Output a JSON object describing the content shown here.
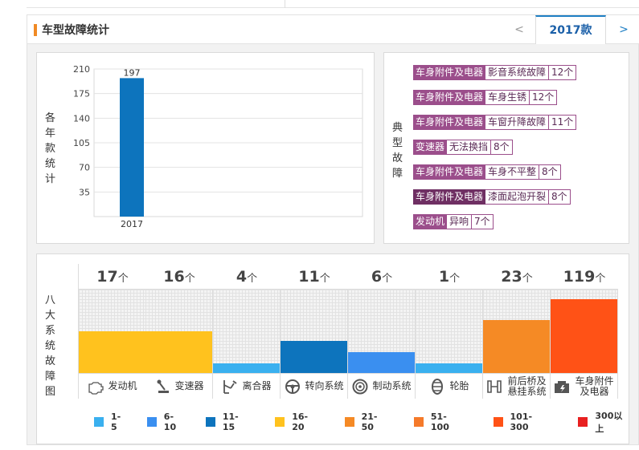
{
  "header": {
    "title": "车型故障统计",
    "prev": "<",
    "year_tab": "2017款",
    "next": ">"
  },
  "chart_data": {
    "type": "bar",
    "ylabel": "各年款统计",
    "categories": [
      "2017"
    ],
    "values": [
      197
    ],
    "ylim": [
      0,
      210
    ],
    "yticks": [
      35,
      70,
      105,
      140,
      175,
      210
    ],
    "grid": true,
    "bar_color": "#0d74bd"
  },
  "faults": {
    "label": "典型故障",
    "items": [
      {
        "category": "车身附件及电器",
        "name": "影音系统故障",
        "count": "12个"
      },
      {
        "category": "车身附件及电器",
        "name": "车身生锈",
        "count": "12个"
      },
      {
        "category": "车身附件及电器",
        "name": "车窗升降故障",
        "count": "11个"
      },
      {
        "category": "变速器",
        "name": "无法换挡",
        "count": "8个"
      },
      {
        "category": "车身附件及电器",
        "name": "车身不平整",
        "count": "8个"
      },
      {
        "category": "车身附件及电器",
        "name": "漆面起泡开裂",
        "count": "8个"
      },
      {
        "category": "发动机",
        "name": "异响",
        "count": "7个"
      }
    ]
  },
  "systems": {
    "label": "八大系统故障图",
    "unit": "个",
    "items": [
      {
        "name": "发动机",
        "count": "17",
        "icon": "engine-icon",
        "color": "#ffc21e",
        "fill": 0.5
      },
      {
        "name": "变速器",
        "count": "16",
        "icon": "gear-shift-icon",
        "color": "#ffc21e",
        "fill": 0.5
      },
      {
        "name": "离合器",
        "count": "4",
        "icon": "clutch-pedal-icon",
        "color": "#3ab0ef",
        "fill": 0.12
      },
      {
        "name": "转向系统",
        "count": "11",
        "icon": "steering-wheel-icon",
        "color": "#0d74bd",
        "fill": 0.38
      },
      {
        "name": "制动系统",
        "count": "6",
        "icon": "brake-disc-icon",
        "color": "#3a8ff0",
        "fill": 0.25
      },
      {
        "name": "轮胎",
        "count": "1",
        "icon": "tire-icon",
        "color": "#3ab0ef",
        "fill": 0.12
      },
      {
        "name": "前后桥及悬挂系统",
        "count": "23",
        "icon": "suspension-icon",
        "color": "#f58a25",
        "fill": 0.63
      },
      {
        "name": "车身附件及电器",
        "count": "119",
        "icon": "car-body-electrical-icon",
        "color": "#ff5216",
        "fill": 0.88
      }
    ]
  },
  "legend": [
    {
      "label": "1-5",
      "color": "#3ab0ef"
    },
    {
      "label": "6-10",
      "color": "#3a8ff0"
    },
    {
      "label": "11-15",
      "color": "#0d74bd"
    },
    {
      "label": "16-20",
      "color": "#ffc21e"
    },
    {
      "label": "21-50",
      "color": "#f58a25"
    },
    {
      "label": "51-100",
      "color": "#f57a2a"
    },
    {
      "label": "101-300",
      "color": "#ff5216"
    },
    {
      "label": "300以上",
      "color": "#e82020"
    }
  ]
}
